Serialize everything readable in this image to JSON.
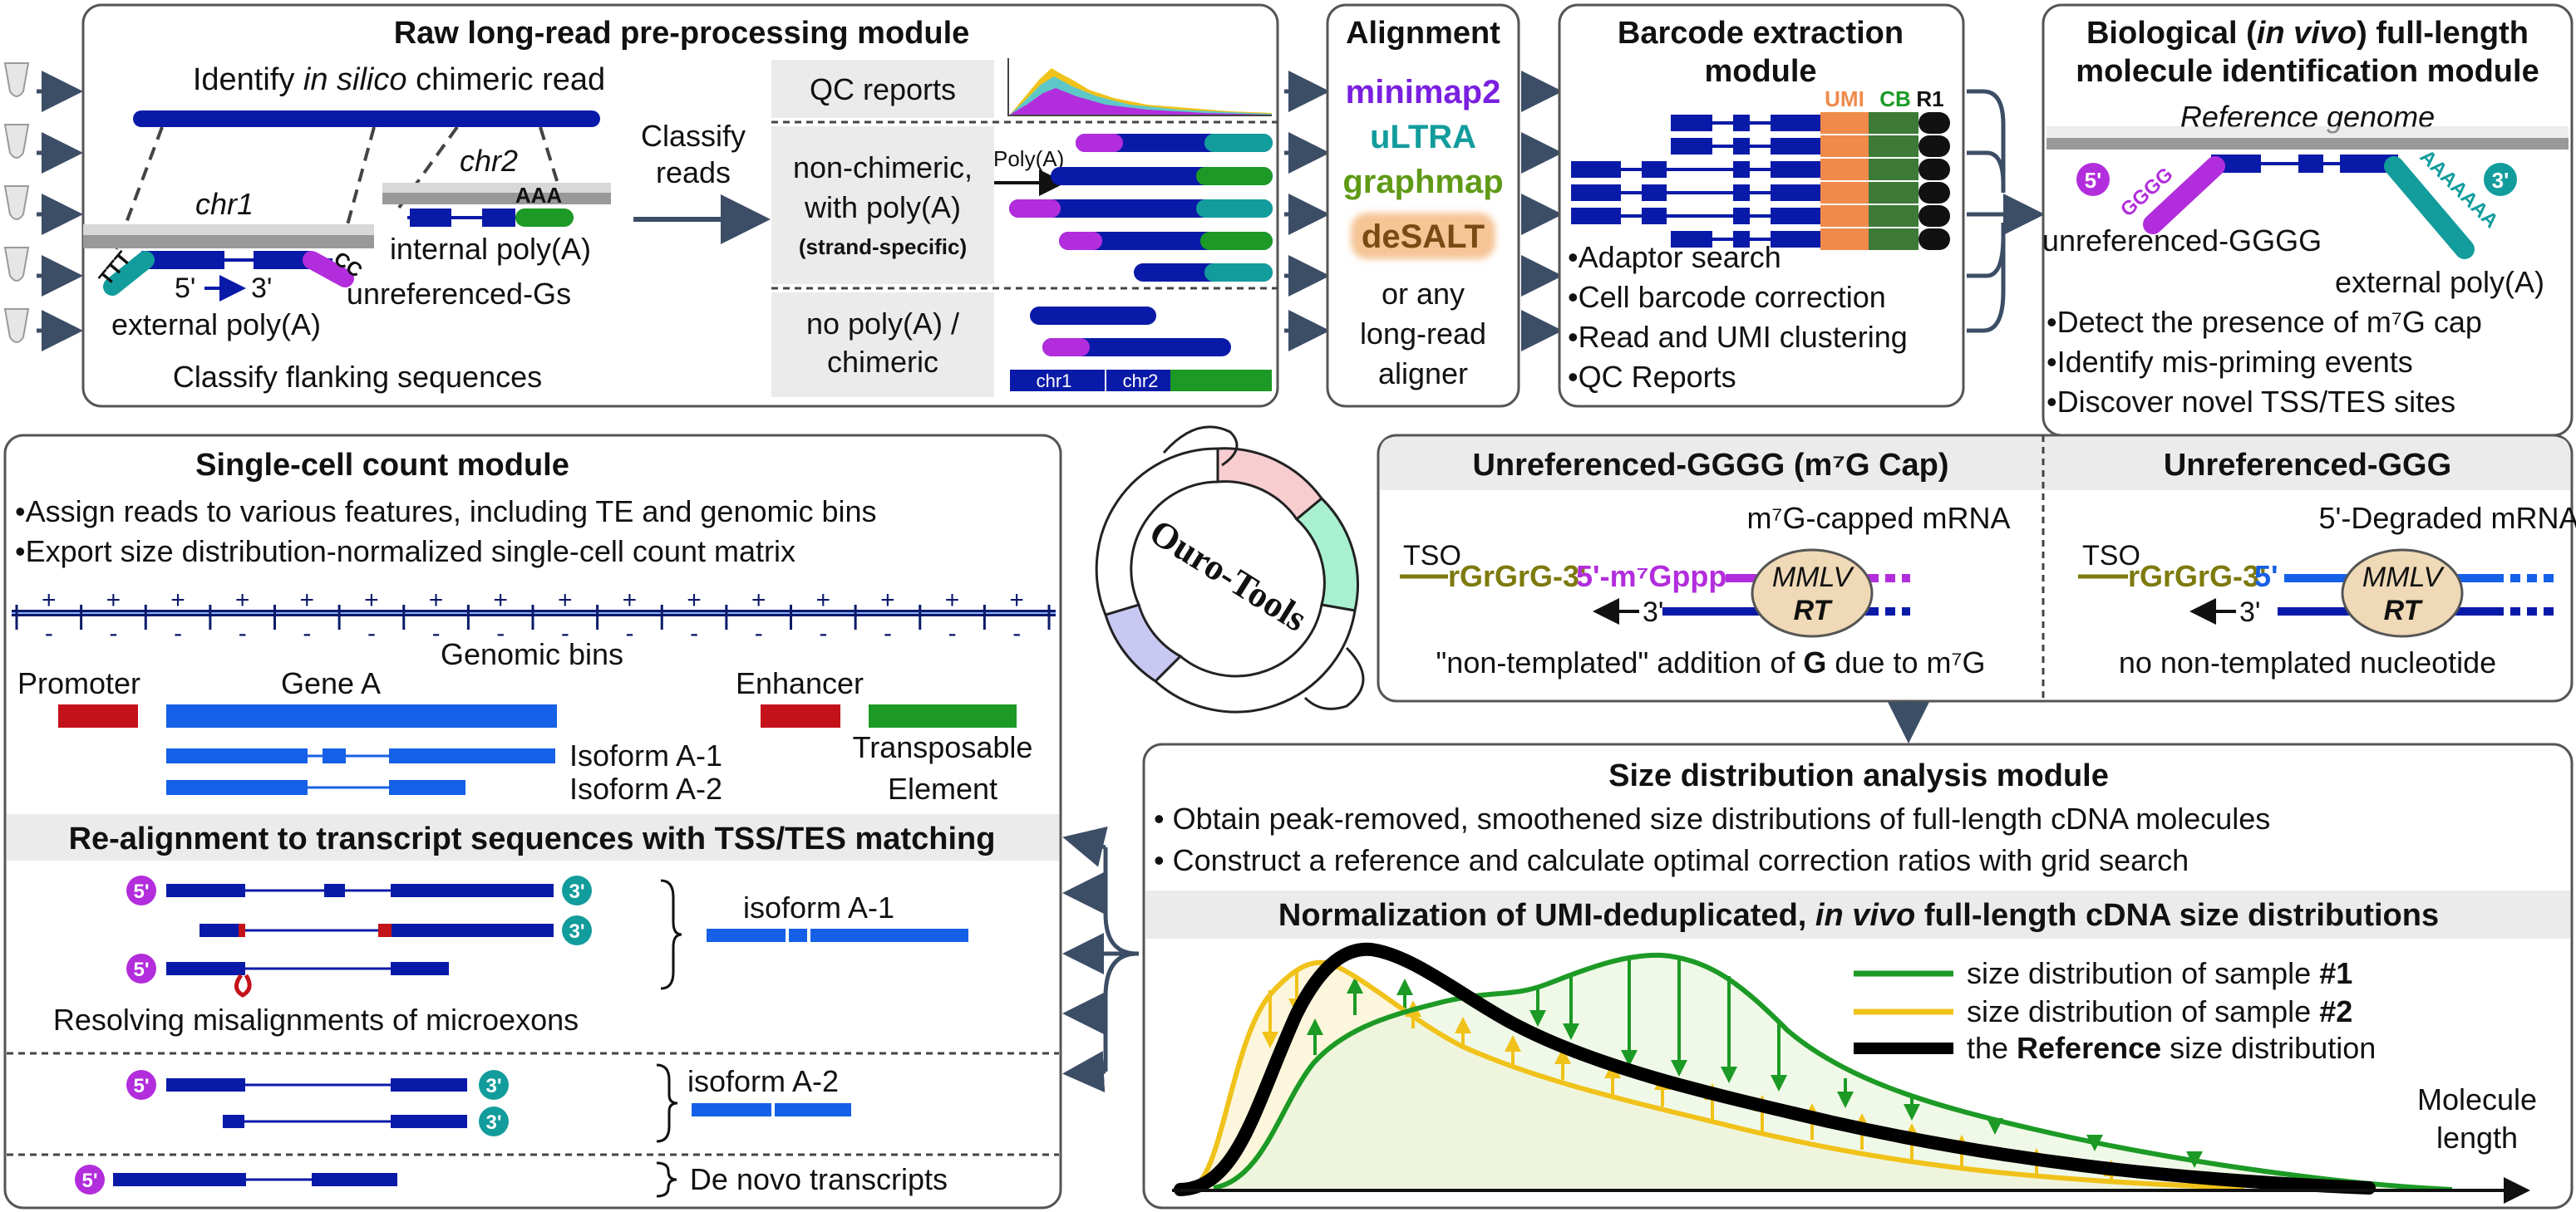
{
  "colors": {
    "purple": "#b22ddc",
    "teal": "#139c9c",
    "navy": "#0a1aa8",
    "blue": "#1560e6",
    "green": "#1c9a25",
    "olive": "#7d7a0e",
    "orange": "#f08a4b",
    "red": "#c4121a",
    "yellow": "#f0c21a",
    "panel_border": "#555555",
    "panel_header": "#ebebeb",
    "arrow": "#3c4d66"
  },
  "raw": {
    "title": "Raw long-read pre-processing module",
    "identify_prefix": "Identify ",
    "identify_italic": "in silico",
    "identify_suffix": " chimeric read",
    "chr1": "chr1",
    "chr2": "chr2",
    "ttt": "TTT",
    "aaa": "AAA",
    "cc": "CC",
    "five": "5'",
    "three": "3'",
    "internal": "internal poly(A)",
    "external": "external poly(A)",
    "unref": "unreferenced-Gs",
    "classify_flank": "Classify flanking sequences",
    "classify_reads_1": "Classify",
    "classify_reads_2": "reads",
    "qc": "QC reports",
    "nonchim_1": "non-chimeric,",
    "nonchim_2": "with poly(A)",
    "nonchim_3": "(strand-specific)",
    "polya": "Poly(A)",
    "nopolya_1": "no poly(A) /",
    "nopolya_2": "chimeric",
    "chr1_small": "chr1",
    "chr2_small": "chr2"
  },
  "alignment": {
    "title": "Alignment",
    "tools": [
      "minimap2",
      "uLTRA",
      "graphmap",
      "deSALT"
    ],
    "or_1": "or any",
    "or_2": "long-read",
    "or_3": "aligner"
  },
  "barcode": {
    "title_1": "Barcode extraction",
    "title_2": "module",
    "umi": "UMI",
    "cb": "CB",
    "r1": "R1",
    "bullets": [
      "Adaptor search",
      "Cell barcode correction",
      "Read and UMI clustering",
      "QC Reports"
    ]
  },
  "bio": {
    "title_1a": "Biological (",
    "title_1b": "in vivo",
    "title_1c": ") full-length",
    "title_2": "molecule identification module",
    "ref": "Reference genome",
    "gggg": "GGGG",
    "aaaaaaa": "AAAAAAA",
    "unref_gggg": "unreferenced-GGGG",
    "external": "external poly(A)",
    "five": "5'",
    "three": "3'",
    "bullets": [
      "Detect the presence of m⁷G cap",
      "Identify mis-priming events",
      "Discover novel TSS/TES sites"
    ]
  },
  "cap": {
    "left_title": "Unreferenced-GGGG (m⁷G Cap)",
    "right_title": "Unreferenced-GGG",
    "left_mrna": "m⁷G-capped mRNA",
    "right_mrna": "5'-Degraded mRNA",
    "tso": "TSO",
    "rgrgrg": "rGrGrG-3'",
    "m7gppp": "5'-m⁷Gppp",
    "five": "5'",
    "three": "3'",
    "mmlv": "MMLV",
    "rt": "RT",
    "left_note_a": "\"non-templated\" addition of ",
    "left_note_b": "G",
    "left_note_c": " due to m⁷G",
    "right_note": "no non-templated nucleotide"
  },
  "logo": {
    "text": "Ouro-Tools"
  },
  "sc": {
    "title": "Single-cell count module",
    "bullets": [
      "Assign reads to various features, including TE and genomic bins",
      "Export size distribution-normalized single-cell count matrix"
    ],
    "genomic_bins": "Genomic bins",
    "promoter": "Promoter",
    "gene_a": "Gene A",
    "enhancer": "Enhancer",
    "iso_a1": "Isoform A-1",
    "iso_a2": "Isoform A-2",
    "te_1": "Transposable",
    "te_2": "Element",
    "realign": "Re-alignment to transcript sequences with TSS/TES matching",
    "iso_a1_lower": "isoform A-1",
    "iso_a2_lower": "isoform A-2",
    "resolving": "Resolving misalignments of microexons",
    "denovo": "De novo transcripts",
    "five": "5'",
    "three": "3'",
    "plus": "+",
    "minus": "-"
  },
  "size": {
    "title": "Size distribution analysis module",
    "bullets": [
      "Obtain peak-removed, smoothened size distributions of full-length cDNA molecules",
      "Construct a reference and calculate optimal correction ratios with grid search"
    ],
    "norm_a": "Normalization of UMI-deduplicated, ",
    "norm_b": "in vivo",
    "norm_c": " full-length cDNA size distributions",
    "legend_1a": "size distribution of sample ",
    "legend_1b": "#1",
    "legend_2a": "size distribution of sample ",
    "legend_2b": "#2",
    "legend_3a": "the ",
    "legend_3b": "Reference",
    "legend_3c": " size distribution",
    "axis_1": "Molecule",
    "axis_2": "length"
  }
}
